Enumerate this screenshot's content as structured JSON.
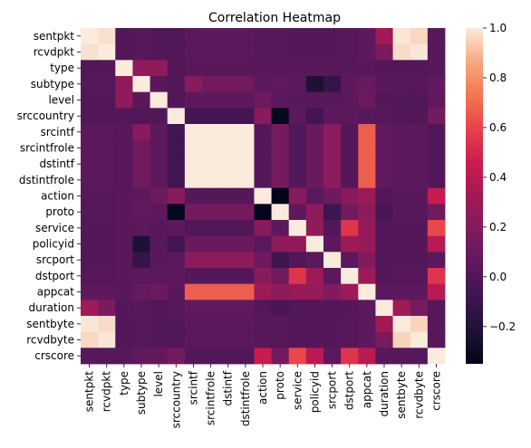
{
  "chart_data": {
    "type": "heatmap",
    "title": "Correlation Heatmap",
    "xlabel": "",
    "ylabel": "",
    "categories": [
      "sentpkt",
      "rcvdpkt",
      "type",
      "subtype",
      "level",
      "srccountry",
      "srcintf",
      "srcintfrole",
      "dstintf",
      "dstintfrole",
      "action",
      "proto",
      "service",
      "policyid",
      "srcport",
      "dstport",
      "appcat",
      "duration",
      "sentbyte",
      "rcvdbyte",
      "crscore"
    ],
    "matrix": [
      [
        1.0,
        0.98,
        0.0,
        0.02,
        0.0,
        0.0,
        0.04,
        0.04,
        0.04,
        0.04,
        0.02,
        0.02,
        0.01,
        0.01,
        0.01,
        0.02,
        0.05,
        0.32,
        0.99,
        0.96,
        0.02
      ],
      [
        0.98,
        1.0,
        0.0,
        0.02,
        0.0,
        0.0,
        0.04,
        0.04,
        0.04,
        0.04,
        0.02,
        0.02,
        0.01,
        0.01,
        0.01,
        0.02,
        0.05,
        0.17,
        0.97,
        0.99,
        0.02
      ],
      [
        0.0,
        0.0,
        1.0,
        0.25,
        0.25,
        0.01,
        0.03,
        0.03,
        0.03,
        0.03,
        0.03,
        0.03,
        0.03,
        0.03,
        0.03,
        0.03,
        0.03,
        0.01,
        0.0,
        0.0,
        0.02
      ],
      [
        0.02,
        0.02,
        0.25,
        1.0,
        0.03,
        0.0,
        0.22,
        0.13,
        0.13,
        0.13,
        0.05,
        0.06,
        0.04,
        -0.22,
        -0.12,
        0.05,
        0.08,
        0.03,
        0.02,
        0.02,
        0.06
      ],
      [
        0.0,
        0.0,
        0.25,
        0.03,
        1.0,
        0.0,
        0.05,
        0.05,
        0.05,
        0.05,
        0.11,
        0.04,
        0.03,
        0.03,
        0.03,
        0.04,
        0.11,
        0.0,
        0.0,
        0.0,
        0.07
      ],
      [
        0.0,
        0.0,
        0.01,
        0.0,
        0.0,
        1.0,
        -0.06,
        -0.06,
        -0.06,
        -0.06,
        0.22,
        -0.33,
        0.04,
        -0.06,
        0.04,
        0.05,
        0.03,
        0.02,
        0.0,
        0.0,
        0.14
      ],
      [
        0.04,
        0.04,
        0.03,
        0.22,
        0.05,
        -0.06,
        1.0,
        1.0,
        1.0,
        1.0,
        0.01,
        0.15,
        0.0,
        0.1,
        0.24,
        0.01,
        0.67,
        0.06,
        0.04,
        0.04,
        0.0
      ],
      [
        0.04,
        0.04,
        0.03,
        0.13,
        0.05,
        -0.06,
        1.0,
        1.0,
        1.0,
        1.0,
        0.01,
        0.15,
        0.0,
        0.1,
        0.24,
        0.01,
        0.67,
        0.06,
        0.04,
        0.04,
        0.0
      ],
      [
        0.04,
        0.04,
        0.03,
        0.13,
        0.05,
        -0.06,
        1.0,
        1.0,
        1.0,
        1.0,
        0.01,
        0.15,
        0.0,
        0.1,
        0.24,
        0.01,
        0.67,
        0.06,
        0.04,
        0.04,
        0.0
      ],
      [
        0.04,
        0.04,
        0.03,
        0.13,
        0.05,
        -0.06,
        1.0,
        1.0,
        1.0,
        1.0,
        0.01,
        0.15,
        0.0,
        0.1,
        0.24,
        0.01,
        0.67,
        0.06,
        0.04,
        0.04,
        0.0
      ],
      [
        0.02,
        0.02,
        0.03,
        0.05,
        0.11,
        0.22,
        0.01,
        0.01,
        0.01,
        0.01,
        1.0,
        -0.36,
        0.22,
        0.04,
        0.12,
        0.22,
        0.3,
        0.0,
        0.02,
        0.02,
        0.45
      ],
      [
        0.02,
        0.02,
        0.03,
        0.06,
        0.04,
        -0.33,
        0.15,
        0.15,
        0.15,
        0.15,
        -0.36,
        1.0,
        0.05,
        0.25,
        -0.08,
        0.13,
        0.24,
        -0.03,
        0.02,
        0.02,
        0.13
      ],
      [
        0.01,
        0.01,
        0.03,
        0.04,
        0.03,
        0.04,
        0.0,
        0.0,
        0.0,
        0.0,
        0.22,
        0.05,
        1.0,
        0.26,
        0.0,
        0.55,
        0.28,
        0.0,
        0.01,
        0.01,
        0.61
      ],
      [
        0.01,
        0.01,
        0.03,
        -0.22,
        0.03,
        -0.06,
        0.1,
        0.1,
        0.1,
        0.1,
        0.04,
        0.25,
        0.26,
        1.0,
        0.04,
        0.31,
        0.27,
        0.0,
        0.01,
        0.01,
        0.4
      ],
      [
        0.01,
        0.01,
        0.03,
        -0.12,
        0.03,
        0.04,
        0.24,
        0.24,
        0.24,
        0.24,
        0.12,
        -0.08,
        0.0,
        0.04,
        1.0,
        0.04,
        0.2,
        0.0,
        0.01,
        0.01,
        0.04
      ],
      [
        0.02,
        0.02,
        0.03,
        0.05,
        0.04,
        0.05,
        0.01,
        0.01,
        0.01,
        0.01,
        0.22,
        0.13,
        0.55,
        0.31,
        0.04,
        1.0,
        0.3,
        0.01,
        0.02,
        0.02,
        0.55
      ],
      [
        0.05,
        0.05,
        0.03,
        0.08,
        0.11,
        0.03,
        0.67,
        0.67,
        0.67,
        0.67,
        0.3,
        0.24,
        0.28,
        0.27,
        0.2,
        0.3,
        1.0,
        0.04,
        0.05,
        0.05,
        0.4
      ],
      [
        0.32,
        0.17,
        0.01,
        0.03,
        0.0,
        0.02,
        0.06,
        0.06,
        0.06,
        0.06,
        0.0,
        -0.03,
        0.0,
        0.0,
        0.0,
        0.01,
        0.04,
        1.0,
        0.32,
        0.16,
        0.02
      ],
      [
        0.99,
        0.97,
        0.0,
        0.02,
        0.0,
        0.0,
        0.04,
        0.04,
        0.04,
        0.04,
        0.02,
        0.02,
        0.01,
        0.01,
        0.01,
        0.02,
        0.05,
        0.32,
        1.0,
        0.95,
        0.02
      ],
      [
        0.96,
        0.99,
        0.0,
        0.02,
        0.0,
        0.0,
        0.04,
        0.04,
        0.04,
        0.04,
        0.02,
        0.02,
        0.01,
        0.01,
        0.01,
        0.02,
        0.05,
        0.16,
        0.95,
        1.0,
        0.02
      ],
      [
        0.02,
        0.02,
        0.02,
        0.06,
        0.07,
        0.14,
        0.0,
        0.0,
        0.0,
        0.0,
        0.45,
        0.13,
        0.61,
        0.4,
        0.04,
        0.55,
        0.4,
        0.02,
        0.02,
        0.02,
        1.0
      ]
    ],
    "vmin": -0.35,
    "vmax": 1.0,
    "colorbar_ticks": [
      1.0,
      0.8,
      0.6,
      0.4,
      0.2,
      0.0,
      -0.2
    ],
    "colorbar_tick_labels": [
      "1.0",
      "0.8",
      "0.6",
      "0.4",
      "0.2",
      "0.0",
      "−0.2"
    ],
    "colormap": "rocket",
    "grid": false,
    "legend": "colorbar-right"
  }
}
